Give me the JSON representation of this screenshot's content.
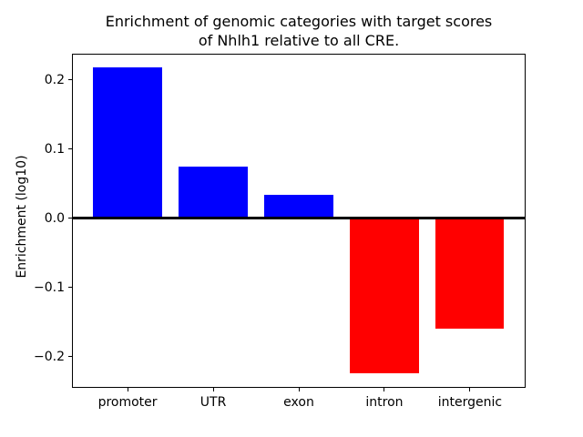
{
  "chart_data": {
    "type": "bar",
    "title": "Enrichment of genomic categories with target scores of Nhlh1 relative to all CRE.",
    "title_lines": [
      "Enrichment of genomic categories with target scores",
      "of Nhlh1 relative to all CRE."
    ],
    "xlabel": "",
    "ylabel": "Enrichment (log10)",
    "categories": [
      "promoter",
      "UTR",
      "exon",
      "intron",
      "intergenic"
    ],
    "values": [
      0.218,
      0.075,
      0.034,
      -0.224,
      -0.16
    ],
    "positive_color": "#0000ff",
    "negative_color": "#ff0000",
    "bar_colors": [
      "#0000ff",
      "#0000ff",
      "#0000ff",
      "#ff0000",
      "#ff0000"
    ],
    "yticks": [
      0.2,
      0.1,
      0.0,
      -0.1,
      -0.2
    ],
    "ytick_labels": [
      "0.2",
      "0.1",
      "0.0",
      "−0.1",
      "−0.2"
    ],
    "ylim": [
      -0.245,
      0.238
    ],
    "xlim": [
      -0.65,
      4.65
    ],
    "bar_width": 0.8,
    "zero_line": true,
    "grid": false,
    "legend": null,
    "frame_color": "#000000",
    "background_color": "#ffffff"
  }
}
